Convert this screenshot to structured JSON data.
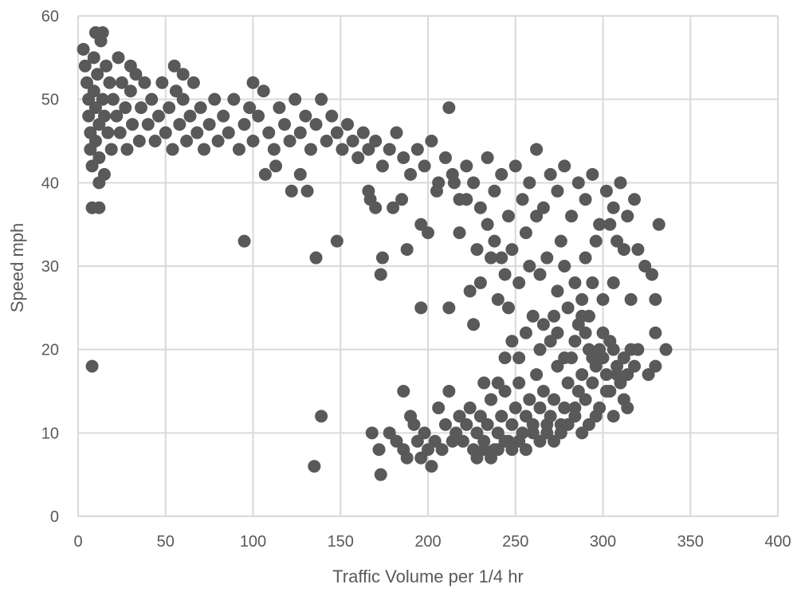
{
  "chart_data": {
    "type": "scatter",
    "title": "",
    "xlabel": "Traffic Volume per 1/4 hr",
    "ylabel": "Speed mph",
    "xlim": [
      0,
      400
    ],
    "ylim": [
      0,
      60
    ],
    "x_ticks": [
      "0",
      "50",
      "100",
      "150",
      "200",
      "250",
      "300",
      "350",
      "400"
    ],
    "y_ticks": [
      "0",
      "10",
      "20",
      "30",
      "40",
      "50",
      "60"
    ],
    "grid": true,
    "legend": "none",
    "marker_color": "#595959",
    "series": [
      {
        "points": [
          [
            3,
            56
          ],
          [
            4,
            54
          ],
          [
            5,
            52
          ],
          [
            6,
            50
          ],
          [
            6,
            48
          ],
          [
            7,
            46
          ],
          [
            7,
            44
          ],
          [
            8,
            42
          ],
          [
            9,
            55
          ],
          [
            9,
            51
          ],
          [
            10,
            49
          ],
          [
            10,
            45
          ],
          [
            11,
            53
          ],
          [
            12,
            47
          ],
          [
            12,
            43
          ],
          [
            13,
            57
          ],
          [
            14,
            50
          ],
          [
            15,
            48
          ],
          [
            15,
            41
          ],
          [
            16,
            54
          ],
          [
            17,
            46
          ],
          [
            18,
            52
          ],
          [
            19,
            44
          ],
          [
            20,
            50
          ],
          [
            22,
            48
          ],
          [
            23,
            55
          ],
          [
            24,
            46
          ],
          [
            25,
            52
          ],
          [
            27,
            49
          ],
          [
            28,
            44
          ],
          [
            30,
            51
          ],
          [
            31,
            47
          ],
          [
            33,
            53
          ],
          [
            35,
            45
          ],
          [
            36,
            49
          ],
          [
            38,
            52
          ],
          [
            40,
            47
          ],
          [
            42,
            50
          ],
          [
            44,
            45
          ],
          [
            46,
            48
          ],
          [
            48,
            52
          ],
          [
            50,
            46
          ],
          [
            52,
            49
          ],
          [
            54,
            44
          ],
          [
            56,
            51
          ],
          [
            58,
            47
          ],
          [
            60,
            50
          ],
          [
            62,
            45
          ],
          [
            64,
            48
          ],
          [
            66,
            52
          ],
          [
            68,
            46
          ],
          [
            70,
            49
          ],
          [
            72,
            44
          ],
          [
            75,
            47
          ],
          [
            78,
            50
          ],
          [
            80,
            45
          ],
          [
            83,
            48
          ],
          [
            86,
            46
          ],
          [
            89,
            50
          ],
          [
            92,
            44
          ],
          [
            95,
            47
          ],
          [
            98,
            49
          ],
          [
            100,
            45
          ],
          [
            103,
            48
          ],
          [
            106,
            51
          ],
          [
            109,
            46
          ],
          [
            112,
            44
          ],
          [
            115,
            49
          ],
          [
            118,
            47
          ],
          [
            121,
            45
          ],
          [
            124,
            50
          ],
          [
            127,
            46
          ],
          [
            130,
            48
          ],
          [
            133,
            44
          ],
          [
            136,
            47
          ],
          [
            139,
            50
          ],
          [
            142,
            45
          ],
          [
            145,
            48
          ],
          [
            148,
            46
          ],
          [
            151,
            44
          ],
          [
            154,
            47
          ],
          [
            157,
            45
          ],
          [
            160,
            43
          ],
          [
            163,
            46
          ],
          [
            166,
            44
          ],
          [
            170,
            45
          ],
          [
            174,
            42
          ],
          [
            178,
            44
          ],
          [
            182,
            46
          ],
          [
            186,
            43
          ],
          [
            190,
            41
          ],
          [
            194,
            44
          ],
          [
            198,
            42
          ],
          [
            202,
            45
          ],
          [
            206,
            40
          ],
          [
            210,
            43
          ],
          [
            214,
            41
          ],
          [
            218,
            38
          ],
          [
            222,
            42
          ],
          [
            226,
            40
          ],
          [
            230,
            37
          ],
          [
            234,
            43
          ],
          [
            238,
            39
          ],
          [
            242,
            41
          ],
          [
            246,
            36
          ],
          [
            250,
            42
          ],
          [
            254,
            38
          ],
          [
            258,
            40
          ],
          [
            262,
            44
          ],
          [
            266,
            37
          ],
          [
            270,
            41
          ],
          [
            274,
            39
          ],
          [
            278,
            42
          ],
          [
            282,
            36
          ],
          [
            286,
            40
          ],
          [
            290,
            38
          ],
          [
            294,
            41
          ],
          [
            298,
            35
          ],
          [
            302,
            39
          ],
          [
            306,
            37
          ],
          [
            310,
            40
          ],
          [
            314,
            36
          ],
          [
            318,
            38
          ],
          [
            8,
            37
          ],
          [
            12,
            37
          ],
          [
            12,
            40
          ],
          [
            10,
            58
          ],
          [
            14,
            58
          ],
          [
            30,
            54
          ],
          [
            55,
            54
          ],
          [
            60,
            53
          ],
          [
            100,
            52
          ],
          [
            107,
            41
          ],
          [
            113,
            42
          ],
          [
            122,
            39
          ],
          [
            127,
            41
          ],
          [
            131,
            39
          ],
          [
            95,
            33
          ],
          [
            136,
            31
          ],
          [
            148,
            33
          ],
          [
            8,
            18
          ],
          [
            139,
            12
          ],
          [
            135,
            6
          ],
          [
            173,
            5
          ],
          [
            174,
            31
          ],
          [
            173,
            29
          ],
          [
            167,
            38
          ],
          [
            166,
            39
          ],
          [
            170,
            37
          ],
          [
            180,
            37
          ],
          [
            185,
            38
          ],
          [
            188,
            32
          ],
          [
            196,
            25
          ],
          [
            196,
            35
          ],
          [
            200,
            34
          ],
          [
            205,
            39
          ],
          [
            212,
            25
          ],
          [
            212,
            49
          ],
          [
            215,
            40
          ],
          [
            218,
            34
          ],
          [
            222,
            38
          ],
          [
            224,
            27
          ],
          [
            226,
            23
          ],
          [
            228,
            32
          ],
          [
            230,
            28
          ],
          [
            234,
            35
          ],
          [
            236,
            31
          ],
          [
            238,
            33
          ],
          [
            240,
            26
          ],
          [
            242,
            31
          ],
          [
            244,
            29
          ],
          [
            246,
            25
          ],
          [
            248,
            32
          ],
          [
            252,
            28
          ],
          [
            256,
            34
          ],
          [
            258,
            30
          ],
          [
            262,
            36
          ],
          [
            264,
            29
          ],
          [
            268,
            31
          ],
          [
            272,
            24
          ],
          [
            274,
            27
          ],
          [
            276,
            33
          ],
          [
            278,
            30
          ],
          [
            280,
            25
          ],
          [
            284,
            28
          ],
          [
            286,
            23
          ],
          [
            288,
            26
          ],
          [
            290,
            31
          ],
          [
            292,
            24
          ],
          [
            294,
            28
          ],
          [
            296,
            33
          ],
          [
            298,
            20
          ],
          [
            300,
            26
          ],
          [
            304,
            35
          ],
          [
            306,
            28
          ],
          [
            308,
            33
          ],
          [
            312,
            32
          ],
          [
            316,
            26
          ],
          [
            320,
            32
          ],
          [
            324,
            30
          ],
          [
            328,
            29
          ],
          [
            330,
            26
          ],
          [
            332,
            35
          ],
          [
            330,
            22
          ],
          [
            336,
            20
          ],
          [
            326,
            17
          ],
          [
            330,
            18
          ],
          [
            168,
            10
          ],
          [
            172,
            8
          ],
          [
            178,
            10
          ],
          [
            182,
            9
          ],
          [
            186,
            15
          ],
          [
            186,
            8
          ],
          [
            188,
            7
          ],
          [
            190,
            12
          ],
          [
            192,
            11
          ],
          [
            194,
            9
          ],
          [
            196,
            7
          ],
          [
            198,
            10
          ],
          [
            200,
            8
          ],
          [
            202,
            6
          ],
          [
            204,
            9
          ],
          [
            206,
            13
          ],
          [
            208,
            8
          ],
          [
            210,
            11
          ],
          [
            212,
            15
          ],
          [
            214,
            9
          ],
          [
            216,
            10
          ],
          [
            218,
            12
          ],
          [
            220,
            9
          ],
          [
            222,
            11
          ],
          [
            224,
            13
          ],
          [
            226,
            8
          ],
          [
            228,
            10
          ],
          [
            230,
            12
          ],
          [
            232,
            9
          ],
          [
            234,
            11
          ],
          [
            236,
            14
          ],
          [
            238,
            8
          ],
          [
            240,
            10
          ],
          [
            242,
            12
          ],
          [
            244,
            15
          ],
          [
            246,
            9
          ],
          [
            248,
            11
          ],
          [
            250,
            13
          ],
          [
            252,
            16
          ],
          [
            254,
            10
          ],
          [
            256,
            12
          ],
          [
            258,
            14
          ],
          [
            260,
            11
          ],
          [
            262,
            17
          ],
          [
            264,
            13
          ],
          [
            266,
            15
          ],
          [
            268,
            10
          ],
          [
            270,
            12
          ],
          [
            272,
            14
          ],
          [
            274,
            18
          ],
          [
            276,
            11
          ],
          [
            278,
            13
          ],
          [
            280,
            16
          ],
          [
            282,
            19
          ],
          [
            284,
            12
          ],
          [
            286,
            15
          ],
          [
            288,
            17
          ],
          [
            290,
            14
          ],
          [
            292,
            20
          ],
          [
            294,
            16
          ],
          [
            296,
            18
          ],
          [
            298,
            13
          ],
          [
            300,
            19
          ],
          [
            302,
            17
          ],
          [
            304,
            15
          ],
          [
            306,
            20
          ],
          [
            308,
            18
          ],
          [
            310,
            16
          ],
          [
            312,
            19
          ],
          [
            314,
            17
          ],
          [
            316,
            20
          ],
          [
            318,
            18
          ],
          [
            320,
            20
          ],
          [
            232,
            16
          ],
          [
            236,
            14
          ],
          [
            240,
            16
          ],
          [
            244,
            19
          ],
          [
            248,
            21
          ],
          [
            252,
            19
          ],
          [
            256,
            22
          ],
          [
            260,
            24
          ],
          [
            264,
            20
          ],
          [
            266,
            23
          ],
          [
            270,
            21
          ],
          [
            274,
            22
          ],
          [
            278,
            19
          ],
          [
            284,
            21
          ],
          [
            288,
            24
          ],
          [
            290,
            22
          ],
          [
            294,
            19
          ],
          [
            300,
            22
          ],
          [
            304,
            21
          ],
          [
            308,
            17
          ],
          [
            312,
            14
          ],
          [
            314,
            13
          ],
          [
            306,
            12
          ],
          [
            302,
            15
          ],
          [
            296,
            12
          ],
          [
            292,
            11
          ],
          [
            288,
            10
          ],
          [
            284,
            13
          ],
          [
            280,
            11
          ],
          [
            276,
            10
          ],
          [
            272,
            9
          ],
          [
            268,
            11
          ],
          [
            264,
            9
          ],
          [
            260,
            10
          ],
          [
            256,
            8
          ],
          [
            252,
            9
          ],
          [
            248,
            8
          ],
          [
            244,
            9
          ],
          [
            240,
            8
          ],
          [
            236,
            7
          ],
          [
            232,
            8
          ],
          [
            228,
            7
          ]
        ]
      }
    ]
  }
}
